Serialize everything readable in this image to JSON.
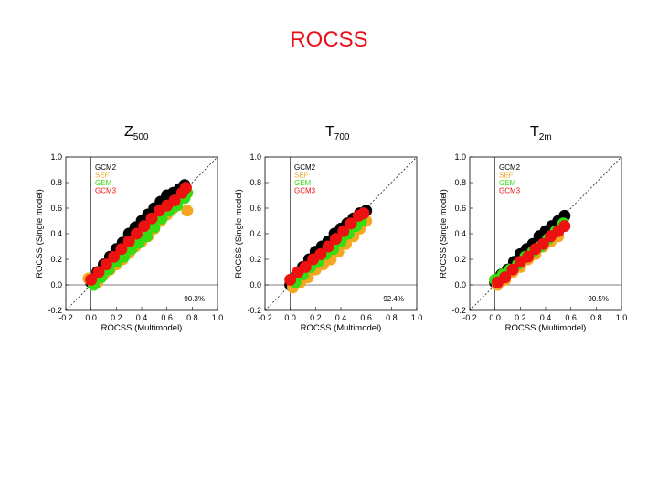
{
  "slide": {
    "title": "ROCSS"
  },
  "chart_data": [
    {
      "type": "scatter",
      "title": "Z",
      "title_sub": "500",
      "xlabel": "ROCSS (Multimodel)",
      "ylabel": "ROCSS (Single model)",
      "xlim": [
        -0.2,
        1.0
      ],
      "ylim": [
        -0.2,
        1.0
      ],
      "xticks": [
        "-0.2",
        "0.0",
        "0.2",
        "0.4",
        "0.6",
        "0.8",
        "1.0"
      ],
      "yticks": [
        "-0.2",
        "0.0",
        "0.2",
        "0.4",
        "0.6",
        "0.8",
        "1.0"
      ],
      "annotation": "90.3%",
      "legend_position": "top-left",
      "reference_line": "y=x dotted",
      "series": [
        {
          "name": "GCM2",
          "color": "#000000",
          "points": [
            [
              0.0,
              0.02
            ],
            [
              0.05,
              0.1
            ],
            [
              0.1,
              0.16
            ],
            [
              0.15,
              0.22
            ],
            [
              0.2,
              0.28
            ],
            [
              0.25,
              0.33
            ],
            [
              0.3,
              0.4
            ],
            [
              0.35,
              0.45
            ],
            [
              0.4,
              0.5
            ],
            [
              0.45,
              0.55
            ],
            [
              0.5,
              0.6
            ],
            [
              0.55,
              0.65
            ],
            [
              0.6,
              0.7
            ],
            [
              0.65,
              0.72
            ],
            [
              0.7,
              0.75
            ],
            [
              0.74,
              0.78
            ]
          ]
        },
        {
          "name": "SEF",
          "color": "#f5a623",
          "points": [
            [
              -0.02,
              0.05
            ],
            [
              0.05,
              0.02
            ],
            [
              0.1,
              0.08
            ],
            [
              0.15,
              0.12
            ],
            [
              0.2,
              0.16
            ],
            [
              0.25,
              0.2
            ],
            [
              0.3,
              0.25
            ],
            [
              0.35,
              0.3
            ],
            [
              0.4,
              0.34
            ],
            [
              0.45,
              0.38
            ],
            [
              0.5,
              0.44
            ],
            [
              0.55,
              0.5
            ],
            [
              0.6,
              0.55
            ],
            [
              0.65,
              0.6
            ],
            [
              0.72,
              0.7
            ],
            [
              0.76,
              0.58
            ]
          ]
        },
        {
          "name": "GEM",
          "color": "#33dd11",
          "points": [
            [
              0.02,
              0.0
            ],
            [
              0.08,
              0.06
            ],
            [
              0.14,
              0.12
            ],
            [
              0.2,
              0.18
            ],
            [
              0.26,
              0.22
            ],
            [
              0.32,
              0.28
            ],
            [
              0.38,
              0.33
            ],
            [
              0.44,
              0.38
            ],
            [
              0.5,
              0.45
            ],
            [
              0.56,
              0.52
            ],
            [
              0.62,
              0.58
            ],
            [
              0.68,
              0.62
            ],
            [
              0.74,
              0.68
            ],
            [
              0.76,
              0.72
            ]
          ]
        },
        {
          "name": "GCM3",
          "color": "#ee1111",
          "points": [
            [
              0.0,
              0.04
            ],
            [
              0.06,
              0.1
            ],
            [
              0.12,
              0.16
            ],
            [
              0.18,
              0.22
            ],
            [
              0.24,
              0.28
            ],
            [
              0.3,
              0.34
            ],
            [
              0.36,
              0.4
            ],
            [
              0.42,
              0.46
            ],
            [
              0.48,
              0.52
            ],
            [
              0.54,
              0.58
            ],
            [
              0.6,
              0.62
            ],
            [
              0.66,
              0.66
            ],
            [
              0.72,
              0.72
            ],
            [
              0.75,
              0.76
            ]
          ]
        }
      ]
    },
    {
      "type": "scatter",
      "title": "T",
      "title_sub": "700",
      "xlabel": "ROCSS (Multimodel)",
      "ylabel": "ROCSS (Single model)",
      "xlim": [
        -0.2,
        1.0
      ],
      "ylim": [
        -0.2,
        1.0
      ],
      "xticks": [
        "-0.2",
        "0.0",
        "0.2",
        "0.4",
        "0.6",
        "0.8",
        "1.0"
      ],
      "yticks": [
        "-0.2",
        "0.0",
        "0.2",
        "0.4",
        "0.6",
        "0.8",
        "1.0"
      ],
      "annotation": "92.4%",
      "legend_position": "top-left",
      "reference_line": "y=x dotted",
      "series": [
        {
          "name": "GCM2",
          "color": "#000000",
          "points": [
            [
              0.0,
              0.0
            ],
            [
              0.05,
              0.08
            ],
            [
              0.1,
              0.14
            ],
            [
              0.15,
              0.2
            ],
            [
              0.2,
              0.26
            ],
            [
              0.25,
              0.3
            ],
            [
              0.3,
              0.34
            ],
            [
              0.35,
              0.4
            ],
            [
              0.4,
              0.44
            ],
            [
              0.45,
              0.48
            ],
            [
              0.5,
              0.52
            ],
            [
              0.55,
              0.56
            ],
            [
              0.6,
              0.58
            ]
          ]
        },
        {
          "name": "SEF",
          "color": "#f5a623",
          "points": [
            [
              0.02,
              -0.02
            ],
            [
              0.08,
              0.02
            ],
            [
              0.14,
              0.06
            ],
            [
              0.2,
              0.12
            ],
            [
              0.26,
              0.16
            ],
            [
              0.32,
              0.2
            ],
            [
              0.38,
              0.26
            ],
            [
              0.44,
              0.32
            ],
            [
              0.5,
              0.38
            ],
            [
              0.55,
              0.44
            ],
            [
              0.6,
              0.5
            ]
          ]
        },
        {
          "name": "GEM",
          "color": "#33dd11",
          "points": [
            [
              0.04,
              0.02
            ],
            [
              0.1,
              0.08
            ],
            [
              0.16,
              0.14
            ],
            [
              0.22,
              0.18
            ],
            [
              0.28,
              0.24
            ],
            [
              0.34,
              0.28
            ],
            [
              0.4,
              0.34
            ],
            [
              0.46,
              0.4
            ],
            [
              0.52,
              0.46
            ],
            [
              0.56,
              0.5
            ]
          ]
        },
        {
          "name": "GCM3",
          "color": "#ee1111",
          "points": [
            [
              0.0,
              0.04
            ],
            [
              0.06,
              0.1
            ],
            [
              0.12,
              0.14
            ],
            [
              0.18,
              0.2
            ],
            [
              0.24,
              0.24
            ],
            [
              0.3,
              0.3
            ],
            [
              0.36,
              0.36
            ],
            [
              0.42,
              0.42
            ],
            [
              0.48,
              0.48
            ],
            [
              0.54,
              0.54
            ],
            [
              0.58,
              0.56
            ]
          ]
        }
      ]
    },
    {
      "type": "scatter",
      "title": "T",
      "title_sub": "2m",
      "xlabel": "ROCSS (Multimodel)",
      "ylabel": "ROCSS (Single model)",
      "xlim": [
        -0.2,
        1.0
      ],
      "ylim": [
        -0.2,
        1.0
      ],
      "xticks": [
        "-0.2",
        "0.0",
        "0.2",
        "0.4",
        "0.6",
        "0.8",
        "1.0"
      ],
      "yticks": [
        "-0.2",
        "0.0",
        "0.2",
        "0.4",
        "0.6",
        "0.8",
        "1.0"
      ],
      "annotation": "90.5%",
      "legend_position": "top-left",
      "reference_line": "y=x dotted",
      "series": [
        {
          "name": "GCM2",
          "color": "#000000",
          "points": [
            [
              0.0,
              0.02
            ],
            [
              0.05,
              0.08
            ],
            [
              0.1,
              0.12
            ],
            [
              0.15,
              0.18
            ],
            [
              0.2,
              0.24
            ],
            [
              0.25,
              0.28
            ],
            [
              0.3,
              0.32
            ],
            [
              0.35,
              0.38
            ],
            [
              0.4,
              0.42
            ],
            [
              0.45,
              0.46
            ],
            [
              0.5,
              0.5
            ],
            [
              0.55,
              0.54
            ]
          ]
        },
        {
          "name": "SEF",
          "color": "#f5a623",
          "points": [
            [
              0.02,
              0.0
            ],
            [
              0.08,
              0.04
            ],
            [
              0.14,
              0.1
            ],
            [
              0.2,
              0.14
            ],
            [
              0.26,
              0.2
            ],
            [
              0.32,
              0.24
            ],
            [
              0.38,
              0.3
            ],
            [
              0.44,
              0.34
            ],
            [
              0.5,
              0.38
            ]
          ]
        },
        {
          "name": "GEM",
          "color": "#33dd11",
          "points": [
            [
              0.0,
              0.04
            ],
            [
              0.06,
              0.08
            ],
            [
              0.12,
              0.12
            ],
            [
              0.18,
              0.16
            ],
            [
              0.24,
              0.22
            ],
            [
              0.3,
              0.26
            ],
            [
              0.36,
              0.3
            ],
            [
              0.42,
              0.36
            ],
            [
              0.48,
              0.42
            ],
            [
              0.54,
              0.48
            ]
          ]
        },
        {
          "name": "GCM3",
          "color": "#ee1111",
          "points": [
            [
              0.02,
              0.02
            ],
            [
              0.08,
              0.06
            ],
            [
              0.14,
              0.12
            ],
            [
              0.2,
              0.18
            ],
            [
              0.26,
              0.22
            ],
            [
              0.32,
              0.28
            ],
            [
              0.38,
              0.32
            ],
            [
              0.44,
              0.38
            ],
            [
              0.5,
              0.42
            ],
            [
              0.55,
              0.46
            ]
          ]
        }
      ]
    }
  ]
}
